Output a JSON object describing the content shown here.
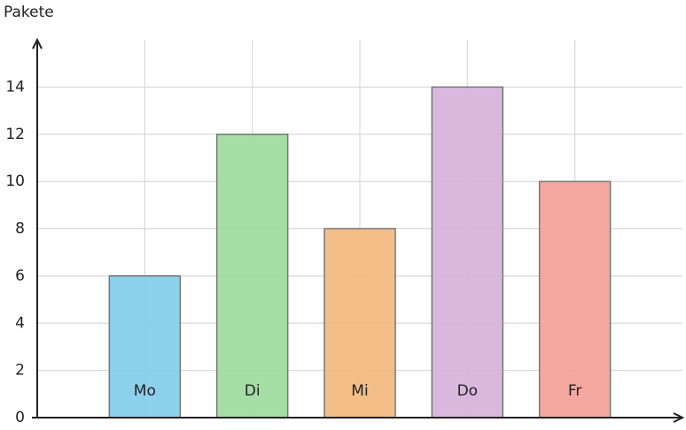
{
  "chart_data": {
    "type": "bar",
    "y_label": "Pakete",
    "categories": [
      "Mo",
      "Di",
      "Mi",
      "Do",
      "Fr"
    ],
    "values": [
      6,
      12,
      8,
      14,
      10
    ],
    "colors": [
      "#87ceeb",
      "#a0dca0",
      "#f2bb82",
      "#d8b4dc",
      "#f3a39b"
    ],
    "ylim": [
      0,
      16
    ],
    "yticks": [
      0,
      2,
      4,
      6,
      8,
      10,
      12,
      14
    ],
    "grid": true
  }
}
